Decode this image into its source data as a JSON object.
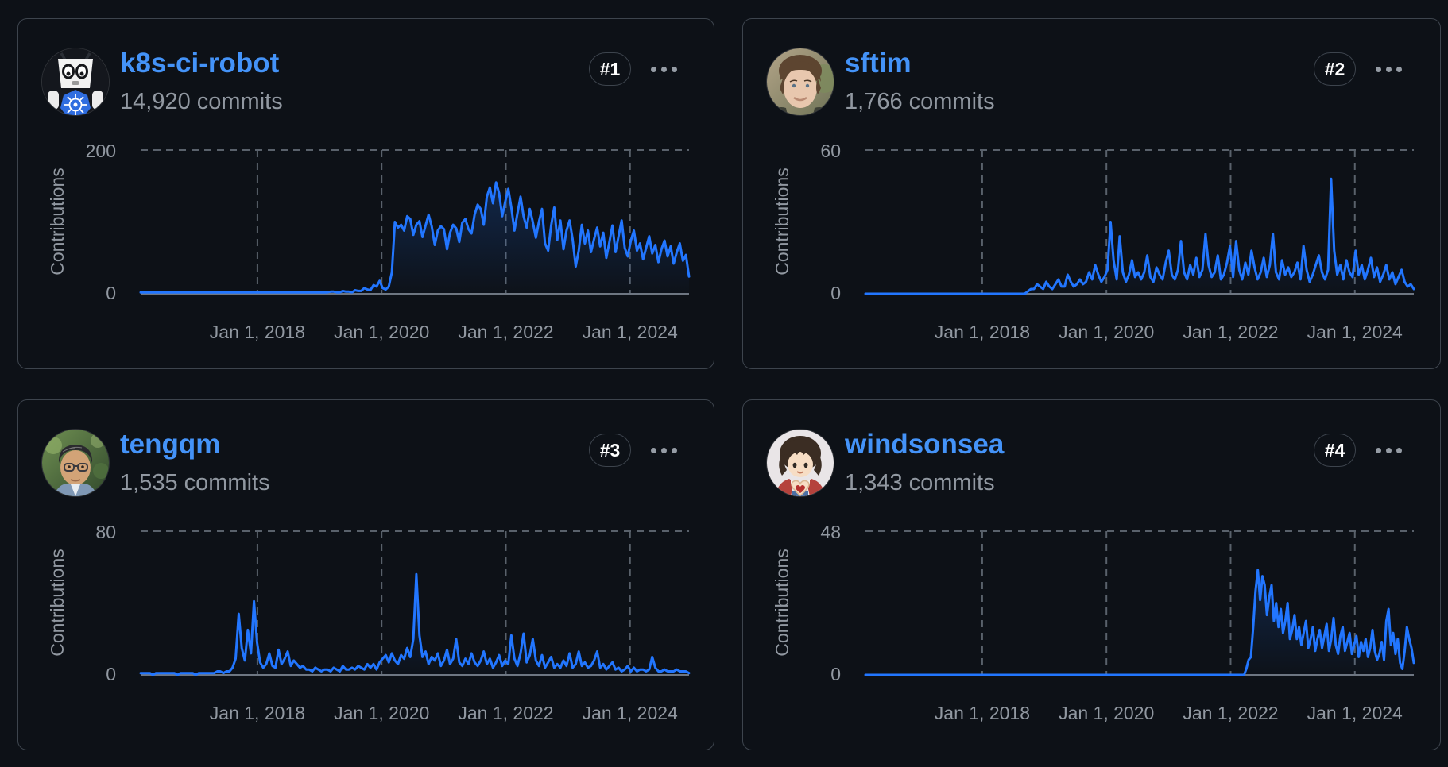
{
  "theme": {
    "background": "#0d1117",
    "card_border": "#3d444d",
    "link_blue": "#4493f8",
    "text_muted": "#9198a1",
    "chart_line": "#2276ff",
    "grid_dash": "#59616b",
    "axis_line": "#6e7681",
    "badge_text": "#ffffff"
  },
  "cards": [
    {
      "username": "k8s-ci-robot",
      "commits": "14,920 commits",
      "rank_label": "#1",
      "avatar": "k8s-robot",
      "menu_icon": "kebab"
    },
    {
      "username": "sftim",
      "commits": "1,766 commits",
      "rank_label": "#2",
      "avatar": "sftim-photo",
      "menu_icon": "kebab"
    },
    {
      "username": "tengqm",
      "commits": "1,535 commits",
      "rank_label": "#3",
      "avatar": "tengqm-photo",
      "menu_icon": "kebab"
    },
    {
      "username": "windsonsea",
      "commits": "1,343 commits",
      "rank_label": "#4",
      "avatar": "windsonsea-anime",
      "menu_icon": "kebab"
    }
  ],
  "chart_data": [
    {
      "type": "area",
      "ylabel": "Contributions",
      "ymax": 200,
      "yticks": [
        0,
        200
      ],
      "x_range": [
        2016.12,
        2024.95
      ],
      "x_tick_years": [
        2018,
        2020,
        2022,
        2024
      ],
      "x_tick_labels": [
        "Jan 1, 2018",
        "Jan 1, 2020",
        "Jan 1, 2022",
        "Jan 1, 2024"
      ],
      "values": [
        2,
        2,
        2,
        2,
        2,
        2,
        2,
        2,
        2,
        2,
        2,
        2,
        2,
        2,
        2,
        2,
        2,
        2,
        2,
        2,
        2,
        2,
        2,
        2,
        2,
        2,
        2,
        2,
        2,
        2,
        2,
        2,
        2,
        2,
        2,
        2,
        2,
        2,
        2,
        2,
        2,
        2,
        2,
        2,
        2,
        2,
        2,
        2,
        2,
        2,
        2,
        2,
        2,
        2,
        2,
        2,
        2,
        2,
        2,
        2,
        2,
        2,
        3,
        3,
        2,
        2,
        4,
        3,
        3,
        2,
        5,
        4,
        4,
        8,
        6,
        5,
        12,
        10,
        18,
        8,
        6,
        10,
        30,
        100,
        92,
        96,
        88,
        108,
        104,
        82,
        96,
        101,
        79,
        95,
        110,
        94,
        68,
        88,
        94,
        90,
        62,
        85,
        96,
        91,
        72,
        99,
        104,
        90,
        84,
        110,
        124,
        118,
        96,
        135,
        148,
        126,
        155,
        140,
        108,
        128,
        146,
        120,
        88,
        112,
        135,
        108,
        92,
        118,
        100,
        78,
        100,
        118,
        70,
        60,
        95,
        120,
        75,
        102,
        62,
        88,
        102,
        76,
        38,
        60,
        96,
        70,
        88,
        58,
        76,
        92,
        66,
        85,
        50,
        72,
        95,
        58,
        80,
        102,
        64,
        52,
        74,
        88,
        60,
        70,
        48,
        64,
        80,
        56,
        68,
        44,
        62,
        74,
        52,
        66,
        42,
        58,
        70,
        46,
        54,
        24
      ]
    },
    {
      "type": "area",
      "ylabel": "Contributions",
      "ymax": 60,
      "yticks": [
        0,
        60
      ],
      "x_range": [
        2016.12,
        2024.95
      ],
      "x_tick_years": [
        2018,
        2020,
        2022,
        2024
      ],
      "x_tick_labels": [
        "Jan 1, 2018",
        "Jan 1, 2020",
        "Jan 1, 2022",
        "Jan 1, 2024"
      ],
      "values": [
        0,
        0,
        0,
        0,
        0,
        0,
        0,
        0,
        0,
        0,
        0,
        0,
        0,
        0,
        0,
        0,
        0,
        0,
        0,
        0,
        0,
        0,
        0,
        0,
        0,
        0,
        0,
        0,
        0,
        0,
        0,
        0,
        0,
        0,
        0,
        0,
        0,
        0,
        0,
        0,
        0,
        0,
        0,
        0,
        0,
        0,
        0,
        0,
        0,
        0,
        0,
        0,
        0,
        1,
        2,
        2,
        4,
        3,
        2,
        5,
        3,
        2,
        4,
        6,
        3,
        3,
        8,
        5,
        3,
        4,
        6,
        4,
        5,
        9,
        6,
        12,
        8,
        5,
        7,
        10,
        30,
        14,
        6,
        24,
        9,
        5,
        8,
        14,
        7,
        9,
        6,
        9,
        16,
        7,
        5,
        11,
        8,
        6,
        13,
        18,
        8,
        6,
        10,
        22,
        9,
        6,
        12,
        8,
        15,
        7,
        10,
        25,
        12,
        7,
        9,
        16,
        6,
        8,
        13,
        20,
        7,
        22,
        10,
        6,
        13,
        8,
        18,
        11,
        6,
        9,
        15,
        7,
        12,
        25,
        9,
        6,
        14,
        8,
        11,
        7,
        9,
        13,
        6,
        20,
        10,
        5,
        8,
        12,
        16,
        9,
        6,
        10,
        48,
        18,
        8,
        12,
        6,
        14,
        9,
        7,
        18,
        8,
        12,
        6,
        10,
        15,
        7,
        11,
        5,
        8,
        12,
        6,
        9,
        4,
        7,
        10,
        5,
        3,
        4,
        2
      ]
    },
    {
      "type": "area",
      "ylabel": "Contributions",
      "ymax": 80,
      "yticks": [
        0,
        80
      ],
      "x_range": [
        2016.12,
        2024.95
      ],
      "x_tick_years": [
        2018,
        2020,
        2022,
        2024
      ],
      "x_tick_labels": [
        "Jan 1, 2018",
        "Jan 1, 2020",
        "Jan 1, 2022",
        "Jan 1, 2024"
      ],
      "values": [
        1,
        1,
        1,
        1,
        0,
        1,
        1,
        1,
        1,
        1,
        1,
        1,
        0,
        1,
        1,
        1,
        1,
        1,
        0,
        1,
        1,
        1,
        1,
        1,
        1,
        2,
        2,
        1,
        2,
        2,
        4,
        9,
        34,
        15,
        8,
        25,
        12,
        41,
        18,
        7,
        4,
        6,
        12,
        5,
        4,
        14,
        6,
        9,
        13,
        5,
        8,
        6,
        4,
        5,
        3,
        3,
        2,
        4,
        3,
        2,
        3,
        3,
        2,
        4,
        3,
        2,
        5,
        3,
        3,
        4,
        3,
        5,
        4,
        3,
        6,
        4,
        6,
        3,
        7,
        9,
        11,
        7,
        12,
        8,
        6,
        11,
        9,
        15,
        10,
        20,
        56,
        22,
        10,
        13,
        6,
        10,
        8,
        12,
        5,
        8,
        14,
        6,
        9,
        20,
        7,
        5,
        9,
        6,
        12,
        7,
        5,
        8,
        13,
        6,
        9,
        4,
        7,
        11,
        5,
        8,
        6,
        22,
        9,
        5,
        12,
        23,
        7,
        11,
        20,
        8,
        5,
        11,
        4,
        7,
        10,
        4,
        6,
        4,
        8,
        5,
        12,
        4,
        6,
        13,
        5,
        7,
        4,
        5,
        8,
        13,
        4,
        6,
        3,
        5,
        7,
        3,
        4,
        2,
        3,
        5,
        2,
        4,
        2,
        3,
        3,
        2,
        3,
        10,
        4,
        2,
        2,
        3,
        2,
        2,
        2,
        3,
        2,
        2,
        2,
        1
      ]
    },
    {
      "type": "area",
      "ylabel": "Contributions",
      "ymax": 48,
      "yticks": [
        0,
        48
      ],
      "x_range": [
        2016.12,
        2024.95
      ],
      "x_tick_years": [
        2018,
        2020,
        2022,
        2024
      ],
      "x_tick_labels": [
        "Jan 1, 2018",
        "Jan 1, 2020",
        "Jan 1, 2022",
        "Jan 1, 2024"
      ],
      "values": [
        0,
        0,
        0,
        0,
        0,
        0,
        0,
        0,
        0,
        0,
        0,
        0,
        0,
        0,
        0,
        0,
        0,
        0,
        0,
        0,
        0,
        0,
        0,
        0,
        0,
        0,
        0,
        0,
        0,
        0,
        0,
        0,
        0,
        0,
        0,
        0,
        0,
        0,
        0,
        0,
        0,
        0,
        0,
        0,
        0,
        0,
        0,
        0,
        0,
        0,
        0,
        0,
        0,
        0,
        0,
        0,
        0,
        0,
        0,
        0,
        0,
        0,
        0,
        0,
        0,
        0,
        0,
        0,
        0,
        0,
        0,
        0,
        0,
        0,
        0,
        0,
        0,
        0,
        0,
        0,
        0,
        0,
        0,
        0,
        0,
        0,
        0,
        0,
        0,
        0,
        0,
        0,
        0,
        0,
        0,
        0,
        0,
        0,
        0,
        0,
        0,
        0,
        0,
        0,
        0,
        0,
        0,
        0,
        0,
        0,
        0,
        0,
        0,
        0,
        0,
        0,
        0,
        0,
        0,
        0,
        0,
        0,
        0,
        0,
        0,
        0,
        0,
        0,
        0,
        0,
        0,
        0,
        0,
        0,
        0,
        0,
        0,
        0,
        0,
        0,
        0,
        0,
        0,
        0,
        0,
        0,
        0,
        0,
        0,
        0,
        0,
        0,
        0,
        0,
        0,
        0,
        0,
        0,
        0,
        0,
        0,
        0,
        0,
        0,
        0,
        0,
        2,
        5,
        6,
        16,
        28,
        35,
        25,
        33,
        30,
        20,
        26,
        30,
        18,
        24,
        16,
        22,
        14,
        18,
        24,
        12,
        15,
        20,
        12,
        16,
        10,
        14,
        18,
        9,
        12,
        16,
        8,
        12,
        15,
        9,
        13,
        17,
        8,
        12,
        19,
        10,
        7,
        13,
        16,
        8,
        11,
        14,
        7,
        10,
        13,
        6,
        11,
        8,
        12,
        6,
        9,
        15,
        8,
        5,
        7,
        11,
        5,
        18,
        22,
        10,
        14,
        7,
        12,
        4,
        2,
        8,
        16,
        12,
        9,
        4
      ]
    }
  ]
}
